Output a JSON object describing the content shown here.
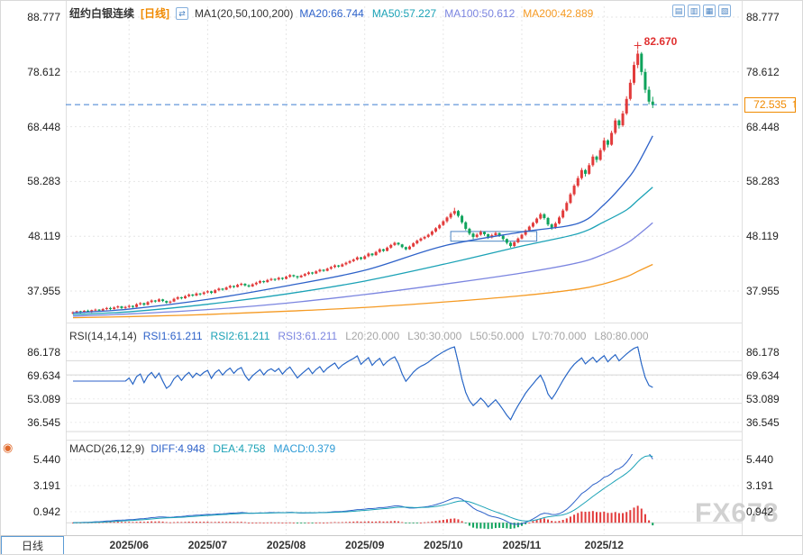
{
  "watermark": "FX678",
  "header": {
    "symbol": "纽约白银连续",
    "period_tag": "[日线]",
    "swap_icon_glyph": "⇄",
    "ma_group": "MA1(20,50,100,200)",
    "latest_arrow_glyph": "↑",
    "ma_items": [
      {
        "text": "MA20:66.744",
        "color": "#2e62c9"
      },
      {
        "text": "MA50:57.227",
        "color": "#1ba2b6"
      },
      {
        "text": "MA100:50.612",
        "color": "#7b85e0"
      },
      {
        "text": "MA200:42.889",
        "color": "#f59a23"
      }
    ],
    "toolbar": [
      {
        "name": "candlestick-style-icon",
        "glyph": "▤"
      },
      {
        "name": "bar-style-icon",
        "glyph": "▥"
      },
      {
        "name": "area-style-icon",
        "glyph": "▦"
      },
      {
        "name": "popout-icon",
        "glyph": "▧"
      }
    ]
  },
  "footer": {
    "period_tab": "日线",
    "crosshair_glyph": "◉"
  },
  "colors": {
    "up": "#e23b3b",
    "down": "#0fa35c",
    "dashed_line": "#3f7fd0",
    "last_price": "#f08a00",
    "high_marker": "#e03030",
    "grid": "#e6e6e6",
    "guide": "#d8d8d8",
    "frame": "#e0e0e0",
    "axis_text": "#222222",
    "box_annotation": "#4a84c4"
  },
  "chart_data": {
    "type": "candlestick",
    "title": "纽约白银连续 日线",
    "y_axis": {
      "main": [
        "88.777",
        "78.612",
        "68.448",
        "58.283",
        "48.119",
        "37.955"
      ],
      "rsi": [
        "86.178",
        "69.634",
        "53.089",
        "36.545"
      ],
      "macd": [
        "5.440",
        "3.191",
        "0.942"
      ]
    },
    "x_axis": {
      "indices": [
        15,
        36,
        57,
        78,
        99,
        120,
        142
      ],
      "labels": [
        "2025/06",
        "2025/07",
        "2025/08",
        "2025/09",
        "2025/10",
        "2025/11",
        "2025/12"
      ]
    },
    "candles": [
      [
        33.8,
        34.2,
        33.6,
        34.0
      ],
      [
        34.0,
        34.3,
        33.8,
        34.2
      ],
      [
        34.2,
        34.3,
        33.8,
        34.0
      ],
      [
        34.0,
        34.4,
        33.9,
        34.3
      ],
      [
        34.3,
        34.5,
        34.0,
        34.1
      ],
      [
        34.1,
        34.5,
        33.9,
        34.4
      ],
      [
        34.4,
        34.7,
        34.2,
        34.5
      ],
      [
        34.5,
        34.6,
        34.1,
        34.3
      ],
      [
        34.3,
        34.8,
        34.2,
        34.6
      ],
      [
        34.6,
        35.0,
        34.4,
        34.8
      ],
      [
        34.8,
        35.0,
        34.4,
        34.6
      ],
      [
        34.6,
        35.1,
        34.5,
        34.9
      ],
      [
        34.9,
        35.3,
        34.7,
        35.1
      ],
      [
        35.1,
        35.2,
        34.6,
        34.8
      ],
      [
        34.8,
        35.2,
        34.6,
        35.0
      ],
      [
        35.0,
        35.4,
        34.8,
        35.2
      ],
      [
        35.2,
        35.3,
        34.8,
        35.0
      ],
      [
        35.0,
        35.7,
        34.9,
        35.5
      ],
      [
        35.5,
        35.9,
        35.3,
        35.7
      ],
      [
        35.7,
        35.8,
        35.2,
        35.4
      ],
      [
        35.4,
        36.1,
        35.3,
        35.9
      ],
      [
        35.9,
        36.4,
        35.7,
        36.2
      ],
      [
        36.2,
        36.3,
        35.8,
        36.0
      ],
      [
        36.0,
        36.6,
        35.9,
        36.4
      ],
      [
        36.4,
        36.5,
        35.9,
        36.1
      ],
      [
        36.1,
        36.2,
        35.6,
        35.8
      ],
      [
        35.8,
        36.2,
        35.6,
        36.0
      ],
      [
        36.0,
        36.7,
        35.9,
        36.5
      ],
      [
        36.5,
        37.0,
        36.3,
        36.8
      ],
      [
        36.8,
        36.9,
        36.4,
        36.6
      ],
      [
        36.6,
        37.2,
        36.5,
        37.0
      ],
      [
        37.0,
        37.5,
        36.8,
        37.3
      ],
      [
        37.3,
        37.4,
        36.9,
        37.1
      ],
      [
        37.1,
        37.7,
        37.0,
        37.5
      ],
      [
        37.5,
        37.6,
        37.1,
        37.4
      ],
      [
        37.4,
        37.9,
        37.2,
        37.7
      ],
      [
        37.7,
        38.1,
        37.5,
        37.9
      ],
      [
        37.9,
        38.0,
        37.4,
        37.6
      ],
      [
        37.6,
        38.3,
        37.5,
        38.1
      ],
      [
        38.1,
        38.6,
        37.9,
        38.4
      ],
      [
        38.4,
        38.5,
        38.0,
        38.2
      ],
      [
        38.2,
        38.8,
        38.1,
        38.6
      ],
      [
        38.6,
        39.1,
        38.4,
        38.9
      ],
      [
        38.9,
        39.0,
        38.5,
        38.7
      ],
      [
        38.7,
        39.3,
        38.6,
        39.1
      ],
      [
        39.1,
        39.5,
        38.9,
        39.3
      ],
      [
        39.3,
        39.4,
        38.8,
        39.0
      ],
      [
        39.0,
        39.2,
        38.6,
        38.8
      ],
      [
        38.8,
        39.4,
        38.7,
        39.2
      ],
      [
        39.2,
        39.7,
        39.0,
        39.5
      ],
      [
        39.5,
        40.0,
        39.3,
        39.8
      ],
      [
        39.8,
        39.9,
        39.4,
        39.6
      ],
      [
        39.6,
        40.2,
        39.5,
        40.0
      ],
      [
        40.0,
        40.4,
        39.8,
        40.2
      ],
      [
        40.2,
        40.3,
        39.8,
        40.1
      ],
      [
        40.1,
        40.6,
        39.9,
        40.4
      ],
      [
        40.4,
        40.5,
        40.0,
        40.2
      ],
      [
        40.2,
        40.8,
        40.1,
        40.6
      ],
      [
        40.6,
        41.1,
        40.4,
        40.9
      ],
      [
        40.9,
        41.0,
        40.5,
        40.7
      ],
      [
        40.7,
        40.8,
        40.2,
        40.5
      ],
      [
        40.5,
        41.0,
        40.4,
        40.8
      ],
      [
        40.8,
        41.3,
        40.6,
        41.1
      ],
      [
        41.1,
        41.6,
        40.9,
        41.4
      ],
      [
        41.4,
        41.5,
        41.0,
        41.2
      ],
      [
        41.2,
        41.8,
        41.1,
        41.6
      ],
      [
        41.6,
        42.1,
        41.4,
        41.9
      ],
      [
        41.9,
        42.0,
        41.5,
        41.7
      ],
      [
        41.7,
        42.3,
        41.6,
        42.1
      ],
      [
        42.1,
        42.6,
        41.9,
        42.4
      ],
      [
        42.4,
        42.9,
        42.2,
        42.7
      ],
      [
        42.7,
        42.8,
        42.3,
        42.5
      ],
      [
        42.5,
        43.1,
        42.4,
        42.9
      ],
      [
        42.9,
        43.4,
        42.7,
        43.2
      ],
      [
        43.2,
        43.7,
        43.0,
        43.5
      ],
      [
        43.5,
        44.0,
        43.3,
        43.8
      ],
      [
        43.8,
        44.4,
        43.6,
        44.2
      ],
      [
        44.2,
        44.3,
        43.7,
        43.9
      ],
      [
        43.9,
        44.6,
        43.8,
        44.4
      ],
      [
        44.4,
        45.1,
        44.2,
        44.9
      ],
      [
        44.9,
        45.0,
        44.4,
        44.6
      ],
      [
        44.6,
        45.4,
        44.5,
        45.2
      ],
      [
        45.2,
        45.9,
        45.0,
        45.7
      ],
      [
        45.7,
        45.8,
        45.2,
        45.4
      ],
      [
        45.4,
        46.2,
        45.3,
        46.0
      ],
      [
        46.0,
        46.7,
        45.8,
        46.5
      ],
      [
        46.5,
        47.1,
        46.3,
        46.9
      ],
      [
        46.9,
        47.0,
        46.4,
        46.6
      ],
      [
        46.6,
        46.7,
        45.9,
        46.1
      ],
      [
        46.1,
        46.2,
        45.5,
        45.7
      ],
      [
        45.7,
        46.4,
        45.6,
        46.2
      ],
      [
        46.2,
        47.0,
        46.1,
        46.8
      ],
      [
        46.8,
        47.5,
        46.6,
        47.3
      ],
      [
        47.3,
        47.9,
        47.1,
        47.7
      ],
      [
        47.7,
        48.2,
        47.5,
        48.0
      ],
      [
        48.0,
        48.6,
        47.8,
        48.4
      ],
      [
        48.4,
        49.2,
        48.2,
        49.0
      ],
      [
        49.0,
        49.8,
        48.8,
        49.6
      ],
      [
        49.6,
        50.4,
        49.4,
        50.2
      ],
      [
        50.2,
        51.1,
        50.0,
        50.9
      ],
      [
        50.9,
        51.8,
        50.6,
        51.6
      ],
      [
        51.6,
        52.6,
        51.3,
        52.3
      ],
      [
        52.3,
        53.4,
        52.0,
        52.8
      ],
      [
        52.8,
        53.0,
        51.6,
        51.9
      ],
      [
        51.9,
        52.1,
        50.4,
        50.7
      ],
      [
        50.7,
        50.9,
        49.2,
        49.5
      ],
      [
        49.5,
        49.7,
        48.3,
        48.6
      ],
      [
        48.6,
        48.8,
        47.6,
        48.0
      ],
      [
        48.0,
        48.7,
        47.8,
        48.4
      ],
      [
        48.4,
        49.2,
        48.2,
        48.9
      ],
      [
        48.9,
        49.0,
        48.2,
        48.5
      ],
      [
        48.5,
        48.6,
        47.6,
        47.9
      ],
      [
        47.9,
        48.6,
        47.7,
        48.3
      ],
      [
        48.3,
        49.0,
        48.1,
        48.7
      ],
      [
        48.7,
        48.8,
        48.0,
        48.2
      ],
      [
        48.2,
        48.3,
        47.3,
        47.6
      ],
      [
        47.6,
        47.7,
        46.6,
        46.9
      ],
      [
        46.9,
        47.1,
        46.0,
        46.3
      ],
      [
        46.3,
        47.2,
        46.1,
        47.0
      ],
      [
        47.0,
        47.9,
        46.8,
        47.7
      ],
      [
        47.7,
        48.6,
        47.5,
        48.4
      ],
      [
        48.4,
        49.4,
        48.2,
        49.2
      ],
      [
        49.2,
        50.1,
        49.0,
        49.9
      ],
      [
        49.9,
        50.8,
        49.7,
        50.6
      ],
      [
        50.6,
        51.6,
        50.4,
        51.4
      ],
      [
        51.4,
        52.5,
        51.2,
        52.2
      ],
      [
        52.2,
        52.4,
        51.2,
        51.5
      ],
      [
        51.5,
        51.7,
        50.0,
        50.3
      ],
      [
        50.3,
        50.5,
        49.3,
        49.7
      ],
      [
        49.7,
        50.8,
        49.5,
        50.5
      ],
      [
        50.5,
        51.9,
        50.3,
        51.6
      ],
      [
        51.6,
        53.2,
        51.4,
        52.9
      ],
      [
        52.9,
        54.6,
        52.7,
        54.3
      ],
      [
        54.3,
        56.2,
        54.1,
        55.9
      ],
      [
        55.9,
        57.8,
        55.6,
        57.5
      ],
      [
        57.5,
        59.3,
        57.2,
        58.9
      ],
      [
        58.9,
        60.8,
        58.6,
        60.4
      ],
      [
        60.4,
        60.6,
        59.2,
        59.7
      ],
      [
        59.7,
        61.7,
        59.5,
        61.3
      ],
      [
        61.3,
        63.3,
        61.0,
        62.9
      ],
      [
        62.9,
        63.1,
        61.8,
        62.3
      ],
      [
        62.3,
        64.5,
        62.1,
        64.1
      ],
      [
        64.1,
        66.4,
        63.8,
        65.9
      ],
      [
        65.9,
        66.1,
        64.6,
        65.1
      ],
      [
        65.1,
        67.7,
        64.9,
        67.3
      ],
      [
        67.3,
        70.0,
        67.0,
        69.6
      ],
      [
        69.6,
        69.8,
        68.1,
        68.7
      ],
      [
        68.7,
        71.4,
        68.4,
        70.9
      ],
      [
        70.9,
        74.1,
        70.6,
        73.6
      ],
      [
        73.6,
        77.2,
        73.3,
        76.6
      ],
      [
        76.6,
        80.5,
        76.2,
        79.9
      ],
      [
        79.9,
        82.67,
        79.3,
        82.0
      ],
      [
        82.0,
        82.3,
        78.0,
        78.6
      ],
      [
        78.6,
        79.2,
        74.7,
        75.3
      ],
      [
        75.3,
        75.9,
        72.6,
        73.1
      ],
      [
        73.1,
        74.0,
        71.9,
        72.535
      ]
    ],
    "moving_averages": [
      {
        "name": "MA20",
        "color": "#2e62c9",
        "anchors": [
          [
            0,
            33.9
          ],
          [
            15,
            34.6
          ],
          [
            36,
            36.4
          ],
          [
            57,
            38.9
          ],
          [
            78,
            41.8
          ],
          [
            99,
            46.3
          ],
          [
            120,
            48.9
          ],
          [
            135,
            50.5
          ],
          [
            142,
            54.0
          ],
          [
            148,
            58.5
          ],
          [
            151,
            61.5
          ],
          [
            155,
            66.744
          ]
        ]
      },
      {
        "name": "MA50",
        "color": "#1ba2b6",
        "anchors": [
          [
            0,
            33.6
          ],
          [
            15,
            34.1
          ],
          [
            36,
            35.5
          ],
          [
            57,
            37.4
          ],
          [
            78,
            39.8
          ],
          [
            99,
            42.9
          ],
          [
            120,
            46.3
          ],
          [
            135,
            48.6
          ],
          [
            142,
            50.8
          ],
          [
            148,
            53.0
          ],
          [
            151,
            54.8
          ],
          [
            155,
            57.227
          ]
        ]
      },
      {
        "name": "MA100",
        "color": "#7b85e0",
        "anchors": [
          [
            0,
            33.3
          ],
          [
            15,
            33.7
          ],
          [
            36,
            34.5
          ],
          [
            57,
            35.7
          ],
          [
            78,
            37.3
          ],
          [
            99,
            39.2
          ],
          [
            120,
            41.3
          ],
          [
            135,
            43.2
          ],
          [
            142,
            44.8
          ],
          [
            148,
            46.8
          ],
          [
            151,
            48.3
          ],
          [
            155,
            50.612
          ]
        ]
      },
      {
        "name": "MA200",
        "color": "#f59a23",
        "anchors": [
          [
            0,
            33.0
          ],
          [
            15,
            33.2
          ],
          [
            36,
            33.6
          ],
          [
            57,
            34.2
          ],
          [
            78,
            34.9
          ],
          [
            99,
            35.9
          ],
          [
            120,
            37.1
          ],
          [
            135,
            38.3
          ],
          [
            142,
            39.3
          ],
          [
            148,
            40.6
          ],
          [
            151,
            41.6
          ],
          [
            155,
            42.889
          ]
        ]
      }
    ],
    "rsi_panel": {
      "label": "RSI(14,14,14)",
      "period": 14,
      "lines": [
        {
          "text": "RSI1:61.211",
          "color": "#2e62c9"
        },
        {
          "text": "RSI2:61.211",
          "color": "#1ba2b6"
        },
        {
          "text": "RSI3:61.211",
          "color": "#7b85e0"
        }
      ],
      "levels": [
        {
          "text": "L20:20.000",
          "value": 20
        },
        {
          "text": "L30:30.000",
          "value": 30
        },
        {
          "text": "L50:50.000",
          "value": 50
        },
        {
          "text": "L70:70.000",
          "value": 70
        },
        {
          "text": "L80:80.000",
          "value": 80
        }
      ]
    },
    "macd_panel": {
      "label": "MACD(26,12,9)",
      "fast": 12,
      "slow": 26,
      "signal": 9,
      "diff_color": "#2e62c9",
      "dea_color": "#1ba2b6",
      "items": [
        {
          "text": "DIFF:4.948",
          "color": "#2e62c9"
        },
        {
          "text": "DEA:4.758",
          "color": "#1ba2b6"
        },
        {
          "text": "MACD:0.379",
          "color": "#2e9bd6"
        }
      ]
    },
    "annotations": {
      "high_label": "82.670",
      "high_index": 151,
      "high_value": 82.67,
      "last_label": "72.535",
      "last_value": 72.535,
      "box": {
        "from_index": 101,
        "to_index": 124,
        "top_value": 49.0,
        "bottom_value": 47.2
      }
    }
  }
}
